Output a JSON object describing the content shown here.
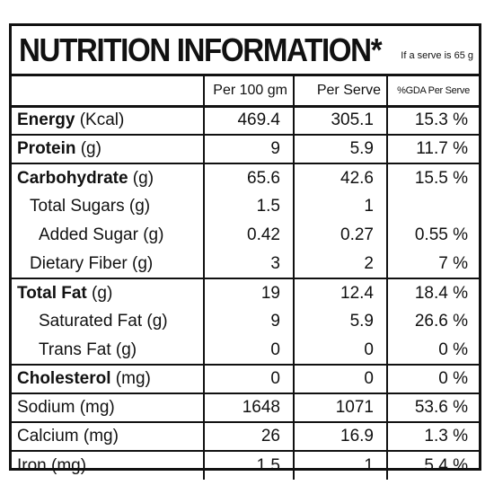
{
  "title": "NUTRITION INFORMATION*",
  "serve_note": "If a serve is 65 g",
  "headers": {
    "nutrient": "",
    "per_100": "Per 100 gm",
    "per_serve": "Per Serve",
    "gda": "%GDA Per Serve"
  },
  "rows": [
    {
      "name_bold": "Energy",
      "name_rest": " (Kcal)",
      "per_100": "469.4",
      "per_serve": "305.1",
      "gda": "15.3 %"
    },
    {
      "name_bold": "Protein",
      "name_rest": " (g)",
      "per_100": "9",
      "per_serve": "5.9",
      "gda": "11.7 %"
    },
    {
      "name_bold": "Carbohydrate",
      "name_rest": " (g)",
      "per_100": "65.6",
      "per_serve": "42.6",
      "gda": "15.5 %"
    },
    {
      "name_bold": "",
      "name_rest": "Total Sugars (g)",
      "per_100": "1.5",
      "per_serve": "1",
      "gda": ""
    },
    {
      "name_bold": "",
      "name_rest": "Added Sugar (g)",
      "per_100": "0.42",
      "per_serve": "0.27",
      "gda": "0.55 %"
    },
    {
      "name_bold": "",
      "name_rest": "Dietary Fiber (g)",
      "per_100": "3",
      "per_serve": "2",
      "gda": "7 %"
    },
    {
      "name_bold": "Total Fat",
      "name_rest": " (g)",
      "per_100": "19",
      "per_serve": "12.4",
      "gda": "18.4 %"
    },
    {
      "name_bold": "",
      "name_rest": "Saturated Fat (g)",
      "per_100": "9",
      "per_serve": "5.9",
      "gda": "26.6 %"
    },
    {
      "name_bold": "",
      "name_rest": "Trans Fat (g)",
      "per_100": "0",
      "per_serve": "0",
      "gda": "0 %"
    },
    {
      "name_bold": "Cholesterol",
      "name_rest": " (mg)",
      "per_100": "0",
      "per_serve": "0",
      "gda": "0 %"
    },
    {
      "name_bold": "",
      "name_rest": "Sodium (mg)",
      "per_100": "1648",
      "per_serve": "1071",
      "gda": "53.6 %"
    },
    {
      "name_bold": "",
      "name_rest": "Calcium (mg)",
      "per_100": "26",
      "per_serve": "16.9",
      "gda": "1.3 %"
    },
    {
      "name_bold": "",
      "name_rest": "Iron (mg)",
      "per_100": "1.5",
      "per_serve": "1",
      "gda": "5.4 %"
    }
  ]
}
